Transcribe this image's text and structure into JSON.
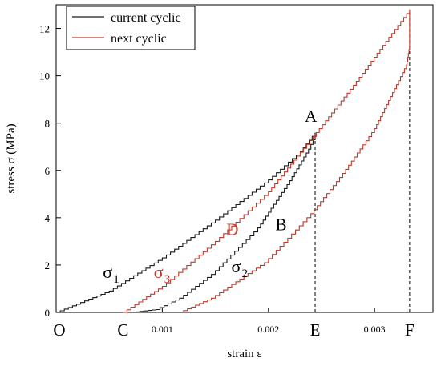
{
  "chart_data": {
    "type": "line",
    "title": "",
    "xlabel": "strain ε",
    "ylabel": "stress σ (MPa)",
    "xlim": [
      0,
      0.00355
    ],
    "ylim": [
      0,
      13
    ],
    "x_ticks": [
      {
        "value": 0.001,
        "label": "0.001"
      },
      {
        "value": 0.002,
        "label": "0.002"
      },
      {
        "value": 0.003,
        "label": "0.003"
      }
    ],
    "y_ticks": [
      {
        "value": 0,
        "label": "0"
      },
      {
        "value": 2,
        "label": "2"
      },
      {
        "value": 4,
        "label": "4"
      },
      {
        "value": 6,
        "label": "6"
      },
      {
        "value": 8,
        "label": "8"
      },
      {
        "value": 10,
        "label": "10"
      },
      {
        "value": 12,
        "label": "12"
      }
    ],
    "legend": {
      "placement": "top-left"
    },
    "series": [
      {
        "name": "current cyclic",
        "color": "#1a1a1a",
        "x": [
          0,
          0.0005,
          0.001,
          0.0015,
          0.002,
          0.0023,
          0.00244,
          0.00244,
          0.0024,
          0.0022,
          0.0019,
          0.0015,
          0.0012,
          0.00098,
          0.00075
        ],
        "y": [
          0,
          0.9,
          2.3,
          3.9,
          5.6,
          6.8,
          7.6,
          7.3,
          6.9,
          5.4,
          3.4,
          1.6,
          0.6,
          0.12,
          0
        ]
      },
      {
        "name": "next cyclic",
        "color": "#c0392b",
        "x": [
          0.00063,
          0.001,
          0.0015,
          0.002,
          0.00245,
          0.0028,
          0.00333,
          0.00333,
          0.0033,
          0.003,
          0.0027,
          0.0024,
          0.002,
          0.0015,
          0.0012
        ],
        "y": [
          0,
          1.1,
          3.0,
          5.1,
          7.6,
          9.6,
          12.8,
          11.1,
          10.3,
          7.6,
          5.7,
          4.0,
          2.1,
          0.6,
          0
        ]
      }
    ],
    "reference_lines": [
      {
        "x": 0.00244,
        "y": 7.6
      },
      {
        "x": 0.00333,
        "y": 12.8
      }
    ],
    "annotations": [
      {
        "text": "O",
        "x": 3e-05,
        "y": -0.75,
        "color": "#000000"
      },
      {
        "text": "C",
        "x": 0.00063,
        "y": -0.75,
        "color": "#000000"
      },
      {
        "text": "E",
        "x": 0.00244,
        "y": -0.75,
        "color": "#000000"
      },
      {
        "text": "F",
        "x": 0.00333,
        "y": -0.75,
        "color": "#000000"
      },
      {
        "text": "A",
        "x": 0.0024,
        "y": 8.3,
        "color": "#000000"
      },
      {
        "text": "B",
        "x": 0.00212,
        "y": 3.7,
        "color": "#000000"
      },
      {
        "text": "D",
        "x": 0.00166,
        "y": 3.5,
        "color": "#c0392b"
      }
    ],
    "sigma_labels": [
      {
        "text": "σ",
        "sub": "1",
        "x": 0.00044,
        "y": 1.45,
        "color": "#000000"
      },
      {
        "text": "σ",
        "sub": "3",
        "x": 0.00092,
        "y": 1.45,
        "color": "#c0392b"
      },
      {
        "text": "σ",
        "sub": "2",
        "x": 0.00165,
        "y": 1.7,
        "color": "#000000"
      }
    ]
  }
}
